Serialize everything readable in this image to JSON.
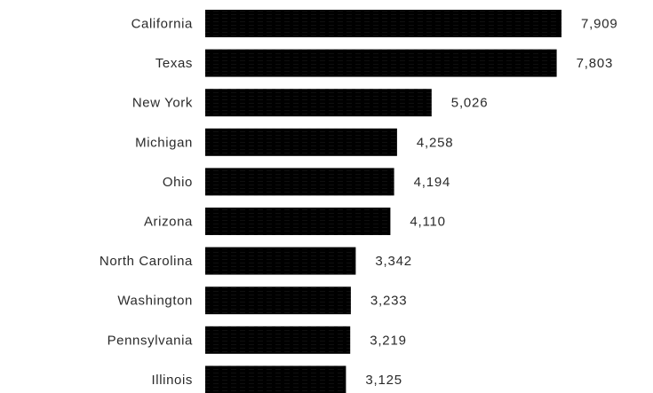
{
  "chart_data": {
    "type": "bar",
    "orientation": "horizontal",
    "categories": [
      "California",
      "Texas",
      "New York",
      "Michigan",
      "Ohio",
      "Arizona",
      "North Carolina",
      "Washington",
      "Pennsylvania",
      "Illinois"
    ],
    "values": [
      7909,
      7803,
      5026,
      4258,
      4194,
      4110,
      3342,
      3233,
      3219,
      3125
    ],
    "value_labels": [
      "7,909",
      "7,803",
      "5,026",
      "4,258",
      "4,194",
      "4,110",
      "3,342",
      "3,233",
      "3,219",
      "3,125"
    ],
    "title": "",
    "xlabel": "",
    "ylabel": "",
    "xlim": [
      0,
      7909
    ],
    "grid": false,
    "legend": "none",
    "bar_color": "#8c9a35",
    "text_color": "#2a2a2a"
  }
}
